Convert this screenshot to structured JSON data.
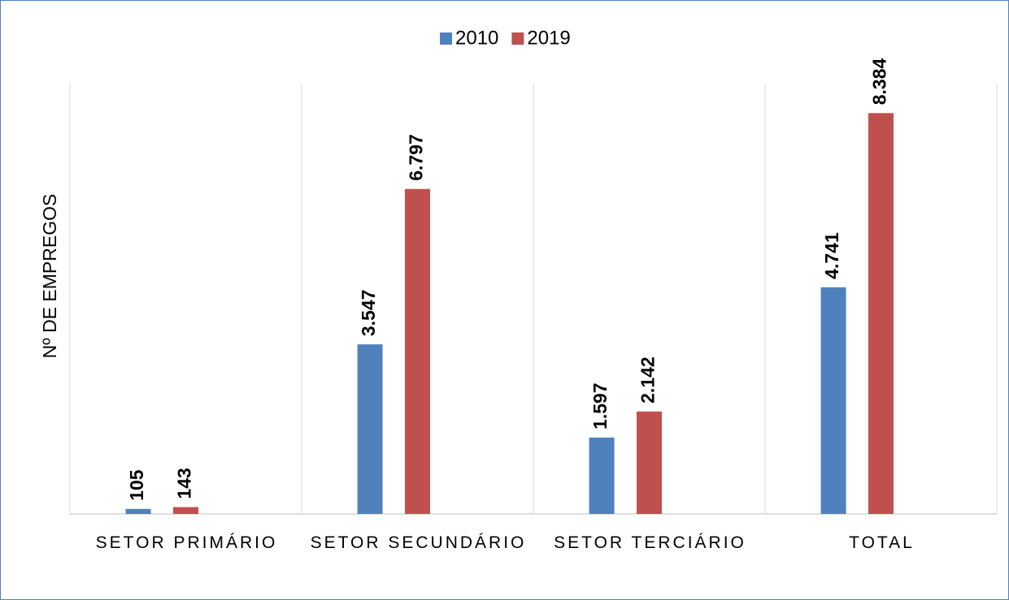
{
  "chart_data": {
    "type": "bar",
    "y_label": "Nº DE EMPREGOS",
    "categories": [
      "SETOR PRIMÁRIO",
      "SETOR SECUNDÁRIO",
      "SETOR TERCIÁRIO",
      "TOTAL"
    ],
    "series": [
      {
        "name": "2010",
        "color": "#4f81bd",
        "values": [
          105,
          3547,
          1597,
          4741
        ],
        "value_labels": [
          "105",
          "3.547",
          "1.597",
          "4.741"
        ]
      },
      {
        "name": "2019",
        "color": "#c0504d",
        "values": [
          143,
          6797,
          2142,
          8384
        ],
        "value_labels": [
          "143",
          "6.797",
          "2.142",
          "8.384"
        ]
      }
    ],
    "ylim": [
      0,
      9000
    ],
    "legend": "top"
  }
}
